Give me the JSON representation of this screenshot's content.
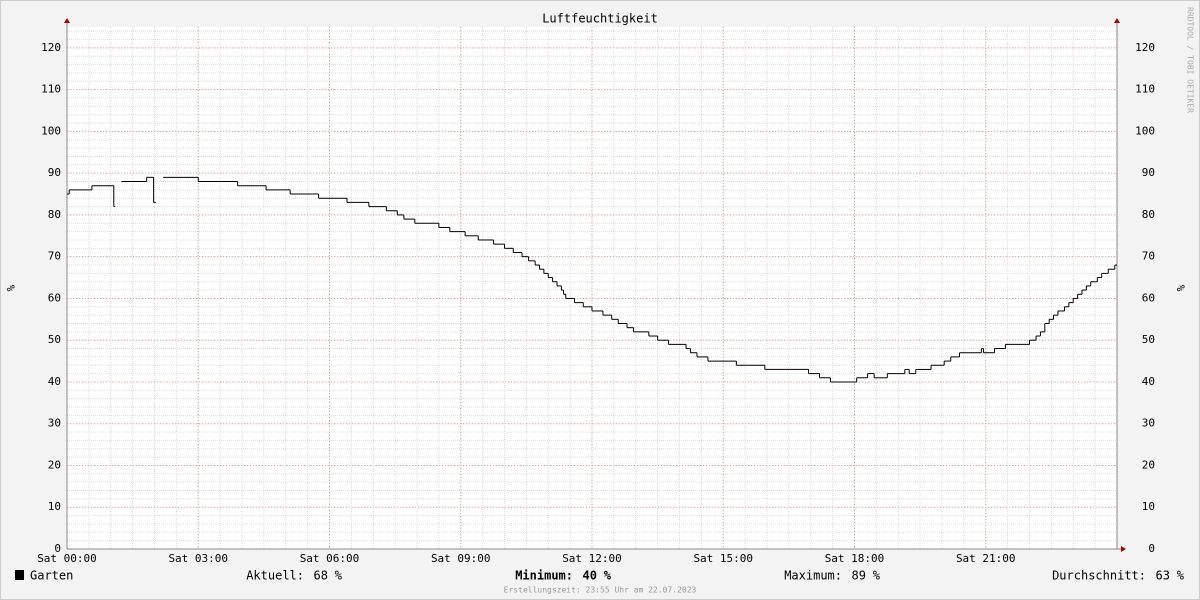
{
  "chart_data": {
    "type": "line",
    "drawstyle": "steps-post",
    "title": "Luftfeuchtigkeit",
    "ylabel": "%",
    "y2label": "%",
    "watermark": "RRDTOOL / TOBI OETIKER",
    "xlim": [
      0,
      24
    ],
    "xticks": [
      {
        "value": 0,
        "label": "Sat 00:00"
      },
      {
        "value": 3,
        "label": "Sat 03:00"
      },
      {
        "value": 6,
        "label": "Sat 06:00"
      },
      {
        "value": 9,
        "label": "Sat 09:00"
      },
      {
        "value": 12,
        "label": "Sat 12:00"
      },
      {
        "value": 15,
        "label": "Sat 15:00"
      },
      {
        "value": 18,
        "label": "Sat 18:00"
      },
      {
        "value": 21,
        "label": "Sat 21:00"
      }
    ],
    "ylim": [
      0,
      125
    ],
    "yticks": [
      0,
      10,
      20,
      30,
      40,
      50,
      60,
      70,
      80,
      90,
      100,
      110,
      120
    ],
    "y2lim": [
      0,
      125
    ],
    "y2ticks": [
      0,
      10,
      20,
      30,
      40,
      50,
      60,
      70,
      80,
      90,
      100,
      110,
      120
    ],
    "grid": true,
    "x": [
      0,
      0.05,
      0.57,
      1.07,
      1.1,
      1.24,
      1.82,
      1.98,
      2.03,
      2.2,
      3.0,
      3.9,
      4.55,
      5.1,
      5.75,
      6.4,
      6.9,
      7.3,
      7.55,
      7.7,
      7.95,
      8.5,
      8.75,
      9.1,
      9.4,
      9.75,
      10.0,
      10.2,
      10.4,
      10.55,
      10.7,
      10.8,
      10.9,
      11.0,
      11.1,
      11.2,
      11.3,
      11.35,
      11.4,
      11.6,
      11.8,
      12.0,
      12.25,
      12.45,
      12.6,
      12.8,
      12.95,
      13.3,
      13.5,
      13.75,
      14.15,
      14.25,
      14.4,
      14.65,
      15.3,
      15.95,
      16.95,
      17.2,
      17.45,
      18.05,
      18.3,
      18.45,
      18.75,
      19.15,
      19.25,
      19.4,
      19.75,
      20.05,
      20.2,
      20.4,
      20.9,
      20.95,
      21.2,
      21.45,
      22.0,
      22.15,
      22.25,
      22.35,
      22.45,
      22.55,
      22.65,
      22.8,
      22.9,
      23.0,
      23.1,
      23.2,
      23.3,
      23.4,
      23.55,
      23.65,
      23.8,
      23.95
    ],
    "series": [
      {
        "name": "Garten",
        "color": "#000000",
        "values": [
          85,
          86,
          87,
          82,
          null,
          88,
          89,
          83,
          null,
          89,
          88,
          87,
          86,
          85,
          84,
          83,
          82,
          81,
          80,
          79,
          78,
          77,
          76,
          75,
          74,
          73,
          72,
          71,
          70,
          69,
          68,
          67,
          66,
          65,
          64,
          63,
          62,
          61,
          60,
          59,
          58,
          57,
          56,
          55,
          54,
          53,
          52,
          51,
          50,
          49,
          48,
          47,
          46,
          45,
          44,
          43,
          42,
          41,
          40,
          41,
          42,
          41,
          42,
          43,
          42,
          43,
          44,
          45,
          46,
          47,
          48,
          47,
          48,
          49,
          50,
          51,
          52,
          54,
          55,
          56,
          57,
          58,
          59,
          60,
          61,
          62,
          63,
          64,
          65,
          66,
          67,
          68
        ]
      }
    ],
    "stats": [
      {
        "label": "Aktuell:",
        "value": 68,
        "unit": "%",
        "bold": false
      },
      {
        "label": "Minimum:",
        "value": 40,
        "unit": "%",
        "bold": true
      },
      {
        "label": "Maximum:",
        "value": 89,
        "unit": "%",
        "bold": false
      },
      {
        "label": "Durchschnitt:",
        "value": 63,
        "unit": "%",
        "bold": false
      }
    ],
    "footer": "Erstellungszeit: 23:55 Uhr am 22.07.2023"
  }
}
